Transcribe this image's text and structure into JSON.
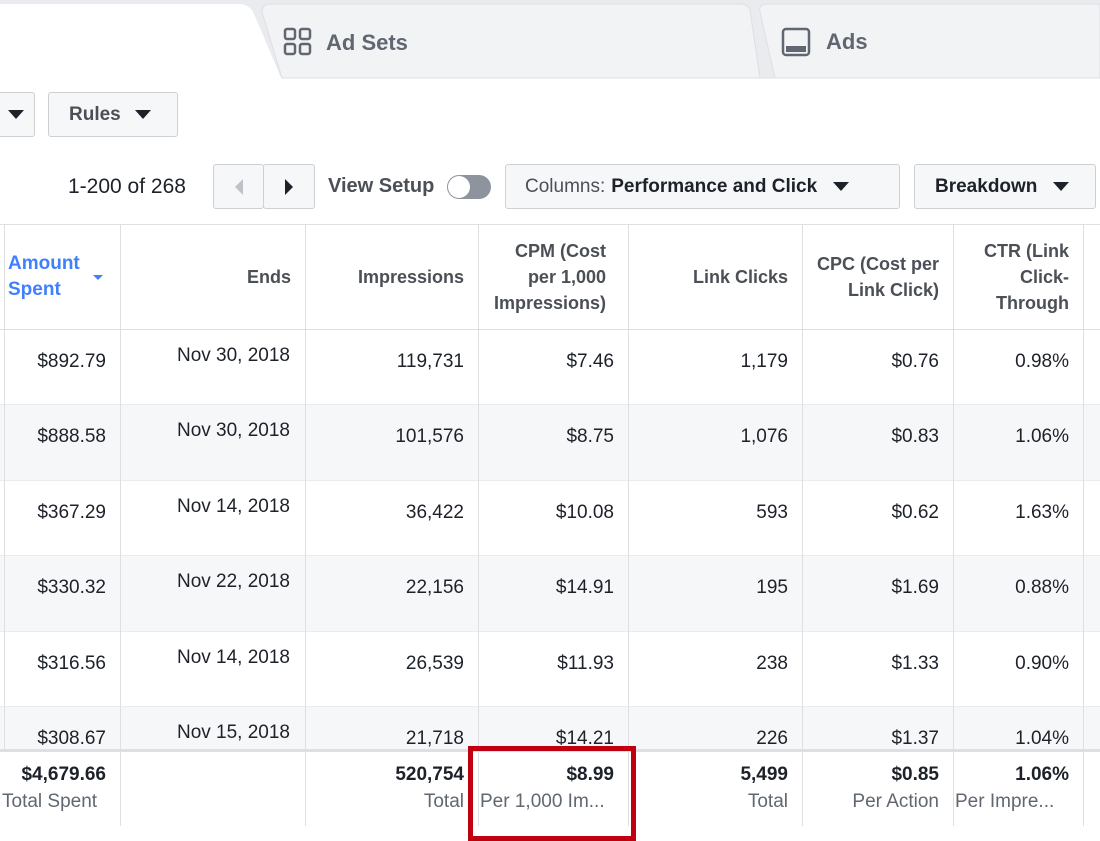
{
  "tabs": {
    "ad_sets": "Ad Sets",
    "ads": "Ads"
  },
  "toolbar": {
    "rules": "Rules",
    "pagination": "1-200 of 268",
    "view_setup": "View Setup",
    "columns_label": "Columns:",
    "columns_value": "Performance and Click",
    "breakdown": "Breakdown"
  },
  "table": {
    "headers": [
      "Amount Spent",
      "Ends",
      "Impressions",
      "CPM (Cost per 1,000 Impressions)",
      "Link Clicks",
      "CPC (Cost per Link Click)",
      "CTR (Link Click-Through"
    ],
    "rows": [
      [
        "$892.79",
        "Nov 30, 2018",
        "119,731",
        "$7.46",
        "1,179",
        "$0.76",
        "0.98%"
      ],
      [
        "$888.58",
        "Nov 30, 2018",
        "101,576",
        "$8.75",
        "1,076",
        "$0.83",
        "1.06%"
      ],
      [
        "$367.29",
        "Nov 14, 2018",
        "36,422",
        "$10.08",
        "593",
        "$0.62",
        "1.63%"
      ],
      [
        "$330.32",
        "Nov 22, 2018",
        "22,156",
        "$14.91",
        "195",
        "$1.69",
        "0.88%"
      ],
      [
        "$316.56",
        "Nov 14, 2018",
        "26,539",
        "$11.93",
        "238",
        "$1.33",
        "0.90%"
      ],
      [
        "$308.67",
        "Nov 15, 2018",
        "21,718",
        "$14.21",
        "226",
        "$1.37",
        "1.04%"
      ]
    ],
    "totals": [
      {
        "value": "$4,679.66",
        "label": "Total Spent"
      },
      null,
      {
        "value": "520,754",
        "label": "Total"
      },
      {
        "value": "$8.99",
        "label": "Per 1,000 Im..."
      },
      {
        "value": "5,499",
        "label": "Total"
      },
      {
        "value": "$0.85",
        "label": "Per Action"
      },
      {
        "value": "1.06%",
        "label": "Per Impre..."
      }
    ]
  }
}
